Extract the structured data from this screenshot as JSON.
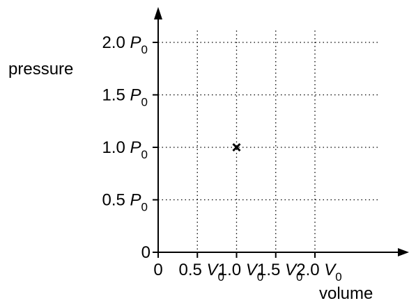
{
  "chart_data": {
    "type": "scatter",
    "xlabel": "volume",
    "ylabel": "pressure",
    "x_ticks": [
      {
        "value": 0,
        "coef": "0",
        "sym": "",
        "sub": ""
      },
      {
        "value": 0.5,
        "coef": "0.5",
        "sym": "V",
        "sub": "0"
      },
      {
        "value": 1.0,
        "coef": "1.0",
        "sym": "V",
        "sub": "0"
      },
      {
        "value": 1.5,
        "coef": "1.5",
        "sym": "V",
        "sub": "0"
      },
      {
        "value": 2.0,
        "coef": "2.0",
        "sym": "V",
        "sub": "0"
      }
    ],
    "y_ticks": [
      {
        "value": 0,
        "coef": "0",
        "sym": "",
        "sub": ""
      },
      {
        "value": 0.5,
        "coef": "0.5",
        "sym": "P",
        "sub": "0"
      },
      {
        "value": 1.0,
        "coef": "1.0",
        "sym": "P",
        "sub": "0"
      },
      {
        "value": 1.5,
        "coef": "1.5",
        "sym": "P",
        "sub": "0"
      },
      {
        "value": 2.0,
        "coef": "2.0",
        "sym": "P",
        "sub": "0"
      }
    ],
    "xlim": [
      0,
      2.0
    ],
    "ylim": [
      0,
      2.0
    ],
    "grid": true,
    "points": [
      {
        "x": 1.0,
        "y": 1.0,
        "marker": "x"
      }
    ]
  }
}
